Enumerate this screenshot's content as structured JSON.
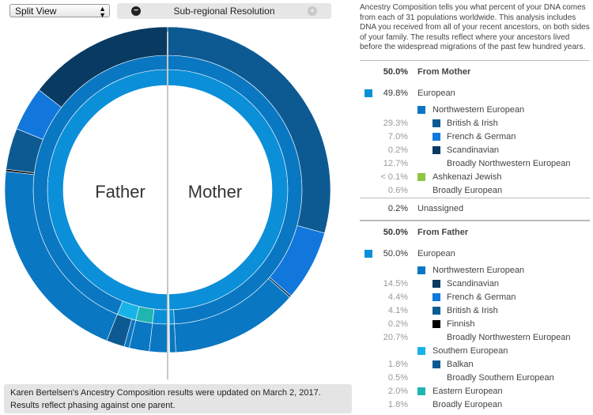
{
  "toolbar": {
    "view_select": "Split View",
    "resolution_label": "Sub-regional Resolution"
  },
  "chart_labels": {
    "left": "Father",
    "right": "Mother"
  },
  "colors": {
    "european": "#0b8fd8",
    "northwestern": "#0a77c2",
    "british_irish": "#0d5a93",
    "french_german": "#1177dd",
    "scandinavian": "#083a62",
    "finnish": "#000000",
    "ashkenazi": "#8dc63f",
    "southern": "#17b3e8",
    "balkan": "#0d5a93",
    "eastern": "#1fb5b0"
  },
  "intro": "Ancestry Composition tells you what percent of your DNA comes from each of 31 populations worldwide. This analysis includes DNA you received from all of your recent ancestors, on both sides of your family. The results reflect where your ancestors lived before the widespread migrations of the past few hundred years.",
  "mother": {
    "header": {
      "pct": "50.0%",
      "label": "From Mother"
    },
    "rows": [
      {
        "level": 0,
        "pct": "49.8%",
        "label": "European",
        "color": "#0b8fd8"
      },
      {
        "level": 1,
        "pct": "",
        "label": "Northwestern European",
        "color": "#0a77c2"
      },
      {
        "level": 2,
        "pct": "29.3%",
        "label": "British & Irish",
        "color": "#0d5a93"
      },
      {
        "level": 2,
        "pct": "7.0%",
        "label": "French & German",
        "color": "#1177dd"
      },
      {
        "level": 2,
        "pct": "0.2%",
        "label": "Scandinavian",
        "color": "#083a62"
      },
      {
        "level": 2,
        "pct": "12.7%",
        "label": "Broadly Northwestern European",
        "color": ""
      },
      {
        "level": 1,
        "pct": "< 0.1%",
        "label": "Ashkenazi Jewish",
        "color": "#8dc63f"
      },
      {
        "level": 1,
        "pct": "0.6%",
        "label": "Broadly European",
        "color": ""
      }
    ],
    "unassigned": {
      "pct": "0.2%",
      "label": "Unassigned"
    }
  },
  "father": {
    "header": {
      "pct": "50.0%",
      "label": "From Father"
    },
    "rows": [
      {
        "level": 0,
        "pct": "50.0%",
        "label": "European",
        "color": "#0b8fd8"
      },
      {
        "level": 1,
        "pct": "",
        "label": "Northwestern European",
        "color": "#0a77c2"
      },
      {
        "level": 2,
        "pct": "14.5%",
        "label": "Scandinavian",
        "color": "#083a62"
      },
      {
        "level": 2,
        "pct": "4.4%",
        "label": "French & German",
        "color": "#1177dd"
      },
      {
        "level": 2,
        "pct": "4.1%",
        "label": "British & Irish",
        "color": "#0d5a93"
      },
      {
        "level": 2,
        "pct": "0.2%",
        "label": "Finnish",
        "color": "#000000"
      },
      {
        "level": 2,
        "pct": "20.7%",
        "label": "Broadly Northwestern European",
        "color": ""
      },
      {
        "level": 1,
        "pct": "",
        "label": "Southern European",
        "color": "#17b3e8"
      },
      {
        "level": 2,
        "pct": "1.8%",
        "label": "Balkan",
        "color": "#0d5a93"
      },
      {
        "level": 2,
        "pct": "0.5%",
        "label": "Broadly Southern European",
        "color": ""
      },
      {
        "level": 1,
        "pct": "2.0%",
        "label": "Eastern European",
        "color": "#1fb5b0"
      },
      {
        "level": 1,
        "pct": "1.8%",
        "label": "Broadly European",
        "color": ""
      }
    ]
  },
  "notice": {
    "line1": "Karen Bertelsen's Ancestry Composition results were updated on March 2, 2017.",
    "line2": "Results reflect phasing against one parent."
  },
  "chart_data": {
    "type": "sunburst",
    "halves": [
      {
        "name": "Father",
        "side": "left",
        "rings": [
          {
            "ring": "inner",
            "segments": [
              {
                "label": "European",
                "value": 50.0,
                "color": "#0b8fd8"
              }
            ]
          },
          {
            "ring": "middle",
            "segments": [
              {
                "label": "Northwestern European",
                "value": 43.9,
                "color": "#0a77c2"
              },
              {
                "label": "Southern European",
                "value": 2.3,
                "color": "#17b3e8"
              },
              {
                "label": "Eastern European",
                "value": 2.0,
                "color": "#1fb5b0"
              },
              {
                "label": "Broadly European",
                "value": 1.8,
                "color": ""
              }
            ]
          },
          {
            "ring": "outer",
            "segments": [
              {
                "label": "Scandinavian",
                "value": 14.5,
                "color": "#083a62"
              },
              {
                "label": "French & German",
                "value": 4.4,
                "color": "#1177dd"
              },
              {
                "label": "British & Irish",
                "value": 4.1,
                "color": "#0d5a93"
              },
              {
                "label": "Finnish",
                "value": 0.2,
                "color": "#000000"
              },
              {
                "label": "Broadly Northwestern European",
                "value": 20.7,
                "color": ""
              },
              {
                "label": "Balkan",
                "value": 1.8,
                "color": "#0d5a93"
              },
              {
                "label": "Broadly Southern European",
                "value": 0.5,
                "color": ""
              },
              {
                "label": "Eastern European",
                "value": 2.0,
                "color": ""
              },
              {
                "label": "Broadly European",
                "value": 1.8,
                "color": ""
              }
            ]
          }
        ]
      },
      {
        "name": "Mother",
        "side": "right",
        "rings": [
          {
            "ring": "inner",
            "segments": [
              {
                "label": "European",
                "value": 49.8,
                "color": "#0b8fd8"
              },
              {
                "label": "Unassigned",
                "value": 0.2,
                "color": ""
              }
            ]
          },
          {
            "ring": "middle",
            "segments": [
              {
                "label": "Northwestern European",
                "value": 49.2,
                "color": "#0a77c2"
              },
              {
                "label": "Broadly European",
                "value": 0.6,
                "color": ""
              },
              {
                "label": "Unassigned",
                "value": 0.2,
                "color": ""
              }
            ]
          },
          {
            "ring": "outer",
            "segments": [
              {
                "label": "British & Irish",
                "value": 29.3,
                "color": "#0d5a93"
              },
              {
                "label": "French & German",
                "value": 7.0,
                "color": "#1177dd"
              },
              {
                "label": "Scandinavian",
                "value": 0.2,
                "color": "#083a62"
              },
              {
                "label": "Broadly Northwestern European",
                "value": 12.7,
                "color": ""
              },
              {
                "label": "Broadly European",
                "value": 0.6,
                "color": ""
              },
              {
                "label": "Unassigned",
                "value": 0.2,
                "color": ""
              }
            ]
          }
        ]
      }
    ]
  }
}
